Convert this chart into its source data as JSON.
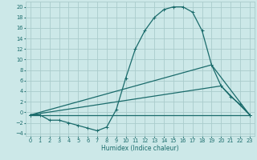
{
  "title": "",
  "xlabel": "Humidex (Indice chaleur)",
  "background_color": "#cce8e8",
  "grid_color": "#aacccc",
  "line_color": "#1a6b6b",
  "xlim": [
    -0.5,
    23.5
  ],
  "ylim": [
    -4.5,
    21.0
  ],
  "xticks": [
    0,
    1,
    2,
    3,
    4,
    5,
    6,
    7,
    8,
    9,
    10,
    11,
    12,
    13,
    14,
    15,
    16,
    17,
    18,
    19,
    20,
    21,
    22,
    23
  ],
  "yticks": [
    -4,
    -2,
    0,
    2,
    4,
    6,
    8,
    10,
    12,
    14,
    16,
    18,
    20
  ],
  "series1": [
    [
      0,
      -0.5
    ],
    [
      1,
      -0.5
    ],
    [
      2,
      -1.5
    ],
    [
      3,
      -1.5
    ],
    [
      4,
      -2.0
    ],
    [
      5,
      -2.5
    ],
    [
      6,
      -3.0
    ],
    [
      7,
      -3.5
    ],
    [
      8,
      -2.8
    ],
    [
      9,
      0.5
    ],
    [
      10,
      6.5
    ],
    [
      11,
      12.0
    ],
    [
      12,
      15.5
    ],
    [
      13,
      18.0
    ],
    [
      14,
      19.5
    ],
    [
      15,
      20.0
    ],
    [
      16,
      20.0
    ],
    [
      17,
      19.0
    ],
    [
      18,
      15.5
    ],
    [
      19,
      9.0
    ],
    [
      20,
      5.0
    ],
    [
      21,
      3.0
    ],
    [
      22,
      1.5
    ],
    [
      23,
      -0.5
    ]
  ],
  "series2": [
    [
      0,
      -0.5
    ],
    [
      23,
      -0.5
    ]
  ],
  "series3": [
    [
      0,
      -0.5
    ],
    [
      19,
      9.0
    ],
    [
      23,
      -0.5
    ]
  ],
  "series4": [
    [
      0,
      -0.5
    ],
    [
      20,
      5.0
    ],
    [
      23,
      -0.5
    ]
  ],
  "xlabel_fontsize": 5.5,
  "tick_fontsize": 4.8,
  "linewidth": 0.9,
  "markersize": 2.5,
  "markeredgewidth": 0.7
}
